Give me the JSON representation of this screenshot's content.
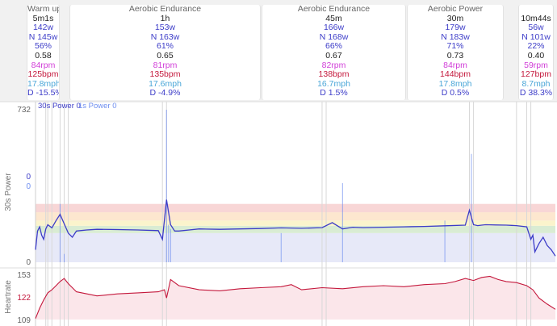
{
  "intervals": [
    {
      "title": "Warm up",
      "duration": "5m1s",
      "power": "142w",
      "np": "N 145w",
      "pct": "56%",
      "if": "0.58",
      "cadence": "84rpm",
      "hr": "125bpm",
      "speed": "17.8mph",
      "decoupling": "D -15.5%"
    },
    {
      "title": "Aerobic Endurance",
      "duration": "1h",
      "power": "153w",
      "np": "N 163w",
      "pct": "61%",
      "if": "0.65",
      "cadence": "81rpm",
      "hr": "135bpm",
      "speed": "17.6mph",
      "decoupling": "D -4.9%"
    },
    {
      "title": "Aerobic Endurance",
      "duration": "45m",
      "power": "166w",
      "np": "N 168w",
      "pct": "66%",
      "if": "0.67",
      "cadence": "82rpm",
      "hr": "138bpm",
      "speed": "16.7mph",
      "decoupling": "D 1.5%"
    },
    {
      "title": "Aerobic Power",
      "duration": "30m",
      "power": "179w",
      "np": "N 183w",
      "pct": "71%",
      "if": "0.73",
      "cadence": "84rpm",
      "hr": "144bpm",
      "speed": "17.8mph",
      "decoupling": "D 0.5%"
    },
    {
      "title": "",
      "duration": "10m44s",
      "power": "56w",
      "np": "N 101w",
      "pct": "22%",
      "if": "0.40",
      "cadence": "59rpm",
      "hr": "127bpm",
      "speed": "8.7mph",
      "decoupling": "D 38.3%"
    }
  ],
  "chart_data": [
    {
      "type": "line",
      "ylabel": "30s Power",
      "ylim": [
        0,
        732
      ],
      "y_ticks": [
        "732",
        "0"
      ],
      "cursor_values": {
        "power_30s": "0",
        "power_1s": "0"
      },
      "legend": [
        "30s Power 0",
        "1s Power 0"
      ],
      "zones_w": [
        [
          0,
          140
        ],
        [
          140,
          175
        ],
        [
          175,
          200
        ],
        [
          200,
          240
        ],
        [
          240,
          280
        ]
      ],
      "series": [
        {
          "name": "30s Power",
          "color": "#3c3cc8",
          "x": [
            0,
            1,
            2,
            3,
            4,
            5,
            6,
            8,
            10,
            12,
            14,
            16,
            18,
            20,
            25,
            30,
            40,
            50,
            60,
            62,
            64,
            66,
            68,
            70,
            75,
            80,
            90,
            100,
            110,
            120,
            130,
            140,
            145,
            150,
            155,
            160,
            170,
            180,
            190,
            200,
            210,
            212,
            214,
            216,
            218,
            220,
            225,
            230,
            235,
            240,
            242,
            243,
            244,
            246,
            248,
            250,
            252,
            254
          ],
          "y": [
            60,
            150,
            170,
            130,
            110,
            160,
            180,
            165,
            200,
            230,
            185,
            140,
            120,
            150,
            155,
            158,
            157,
            155,
            152,
            110,
            300,
            180,
            150,
            150,
            155,
            160,
            158,
            160,
            162,
            165,
            163,
            166,
            190,
            160,
            168,
            166,
            168,
            170,
            172,
            175,
            178,
            250,
            180,
            176,
            178,
            180,
            179,
            178,
            176,
            170,
            110,
            130,
            50,
            90,
            120,
            80,
            60,
            30
          ]
        },
        {
          "name": "1s Power",
          "color": "#6e8ef0",
          "x": [
            0,
            12,
            14,
            64,
            65,
            66,
            120,
            150,
            200,
            213,
            250
          ],
          "y": [
            0,
            280,
            40,
            732,
            180,
            160,
            140,
            380,
            200,
            520,
            0
          ]
        }
      ]
    },
    {
      "type": "line",
      "ylabel": "Heartrate",
      "ylim": [
        109,
        153
      ],
      "y_ticks": [
        "153",
        "122",
        "109"
      ],
      "series": [
        {
          "name": "Heartrate",
          "color": "#c4183c",
          "x": [
            0,
            2,
            4,
            6,
            8,
            10,
            12,
            14,
            16,
            20,
            30,
            40,
            50,
            60,
            63,
            64,
            66,
            70,
            80,
            90,
            100,
            110,
            120,
            125,
            130,
            140,
            150,
            160,
            170,
            180,
            190,
            200,
            205,
            210,
            214,
            218,
            222,
            226,
            230,
            235,
            240,
            243,
            246,
            250,
            254
          ],
          "y": [
            110,
            120,
            128,
            135,
            138,
            142,
            146,
            149,
            144,
            136,
            132,
            134,
            135,
            136,
            138,
            130,
            148,
            142,
            138,
            137,
            139,
            140,
            141,
            143,
            138,
            140,
            139,
            141,
            142,
            141,
            143,
            144,
            146,
            149,
            147,
            150,
            151,
            148,
            146,
            145,
            142,
            138,
            130,
            124,
            119
          ]
        }
      ]
    }
  ]
}
